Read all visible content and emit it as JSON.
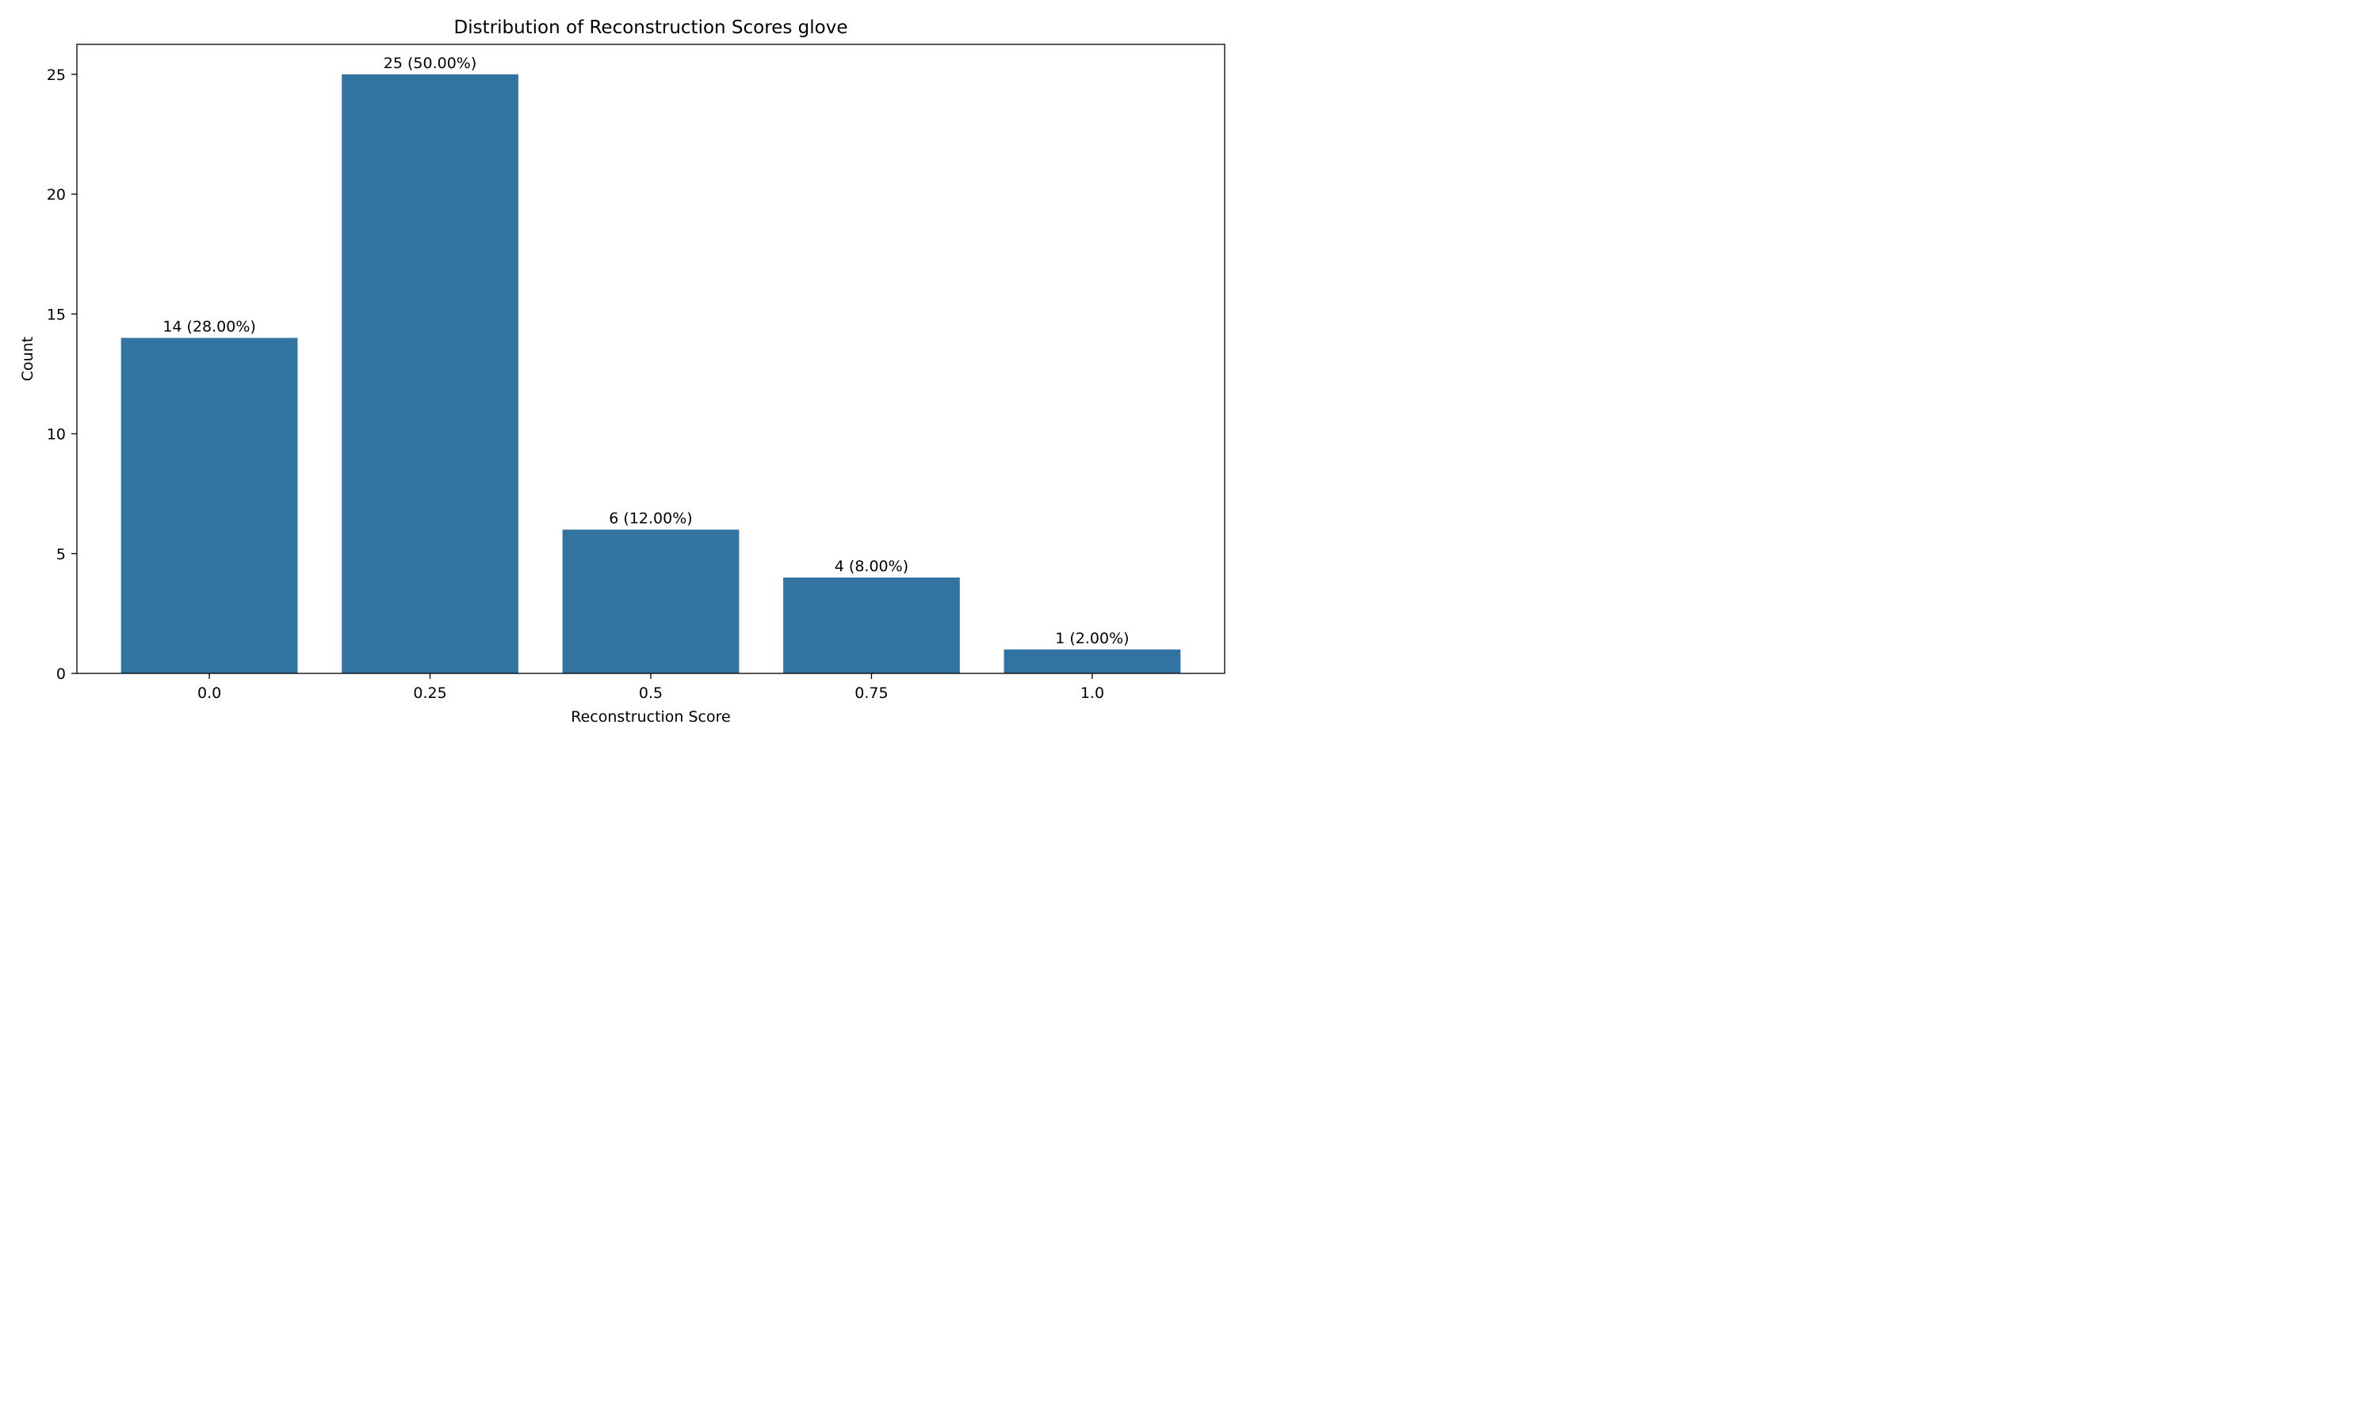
{
  "chart_data": {
    "type": "bar",
    "title": "Distribution of Reconstruction Scores glove",
    "xlabel": "Reconstruction Score",
    "ylabel": "Count",
    "categories": [
      "0.0",
      "0.25",
      "0.5",
      "0.75",
      "1.0"
    ],
    "values": [
      14,
      25,
      6,
      4,
      1
    ],
    "value_labels": [
      "14 (28.00%)",
      "25 (50.00%)",
      "6 (12.00%)",
      "4 (8.00%)",
      "1 (2.00%)"
    ],
    "ylim": [
      0,
      26.25
    ],
    "yticks": [
      "0",
      "5",
      "10",
      "15",
      "20",
      "25"
    ],
    "grid": false,
    "legend": "none",
    "bar_color": "#3274a1"
  }
}
